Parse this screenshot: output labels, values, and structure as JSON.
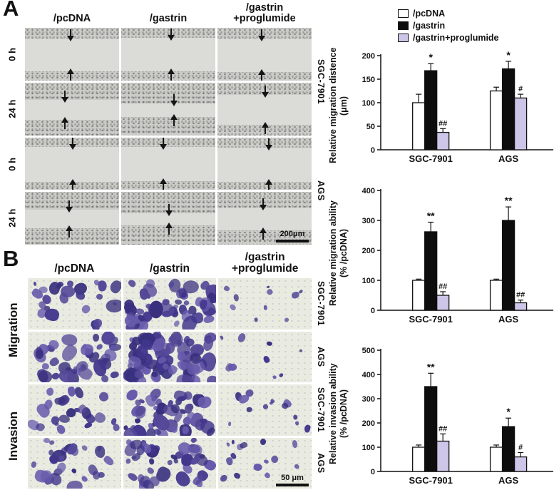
{
  "figure": {
    "panel_a": {
      "label": "A",
      "col_headers": [
        "/pcDNA",
        "/gastrin",
        "/gastrin\n+proglumide"
      ],
      "row_labels": [
        "0 h",
        "24 h",
        "0 h",
        "24 h"
      ],
      "cell_lines": [
        "SGC-7901",
        "AGS"
      ],
      "scale_bar": "200μm"
    },
    "panel_b": {
      "label": "B",
      "col_headers": [
        "/pcDNA",
        "/gastrin",
        "/gastrin\n+proglumide"
      ],
      "row_groups": [
        "Migration",
        "Invasion"
      ],
      "row_cell_lines": [
        "SGC-7901",
        "AGS",
        "SGC-7901",
        "AGS"
      ],
      "scale_bar": "50 μm"
    }
  },
  "legend": {
    "items": [
      {
        "label": "/pcDNA",
        "color": "#ffffff"
      },
      {
        "label": "/gastrin",
        "color": "#0d0d0d"
      },
      {
        "label": "/gastrin+proglumide",
        "color": "#cdc6e8"
      }
    ]
  },
  "chart_data": [
    {
      "type": "bar",
      "title": "",
      "ylabel": "Relative migration distence\n(μm)",
      "categories": [
        "SGC-7901",
        "AGS"
      ],
      "series": [
        {
          "name": "/pcDNA",
          "color": "#ffffff",
          "values": [
            100,
            125
          ],
          "errors": [
            18,
            8
          ],
          "annotations": [
            "",
            ""
          ]
        },
        {
          "name": "/gastrin",
          "color": "#0d0d0d",
          "values": [
            168,
            172
          ],
          "errors": [
            15,
            16
          ],
          "annotations": [
            "*",
            "*"
          ]
        },
        {
          "name": "/gastrin+proglumide",
          "color": "#cdc6e8",
          "values": [
            37,
            110
          ],
          "errors": [
            8,
            8
          ],
          "annotations": [
            "##",
            "#"
          ]
        }
      ],
      "ylim": [
        0,
        200
      ],
      "yticks": [
        0,
        50,
        100,
        150,
        200
      ],
      "legend_position": "top-right",
      "grid": false
    },
    {
      "type": "bar",
      "title": "",
      "ylabel": "Relative migration ability\n(% /pcDNA)",
      "categories": [
        "SGC-7901",
        "AGS"
      ],
      "series": [
        {
          "name": "/pcDNA",
          "color": "#ffffff",
          "values": [
            100,
            100
          ],
          "errors": [
            4,
            4
          ],
          "annotations": [
            "",
            ""
          ]
        },
        {
          "name": "/gastrin",
          "color": "#0d0d0d",
          "values": [
            262,
            300
          ],
          "errors": [
            32,
            45
          ],
          "annotations": [
            "**",
            "**"
          ]
        },
        {
          "name": "/gastrin+proglumide",
          "color": "#cdc6e8",
          "values": [
            50,
            25
          ],
          "errors": [
            12,
            9
          ],
          "annotations": [
            "##",
            "##"
          ]
        }
      ],
      "ylim": [
        0,
        400
      ],
      "yticks": [
        0,
        100,
        200,
        300,
        400
      ],
      "grid": false
    },
    {
      "type": "bar",
      "title": "",
      "ylabel": "Relative invasion ability\n(% /pcDNA)",
      "categories": [
        "SGC-7901",
        "AGS"
      ],
      "series": [
        {
          "name": "/pcDNA",
          "color": "#ffffff",
          "values": [
            100,
            100
          ],
          "errors": [
            9,
            9
          ],
          "annotations": [
            "",
            ""
          ]
        },
        {
          "name": "/gastrin",
          "color": "#0d0d0d",
          "values": [
            350,
            185
          ],
          "errors": [
            55,
            35
          ],
          "annotations": [
            "**",
            "*"
          ]
        },
        {
          "name": "/gastrin+proglumide",
          "color": "#cdc6e8",
          "values": [
            125,
            60
          ],
          "errors": [
            30,
            18
          ],
          "annotations": [
            "##",
            "#"
          ]
        }
      ],
      "ylim": [
        0,
        500
      ],
      "yticks": [
        0,
        100,
        200,
        300,
        400,
        500
      ],
      "grid": false
    }
  ]
}
